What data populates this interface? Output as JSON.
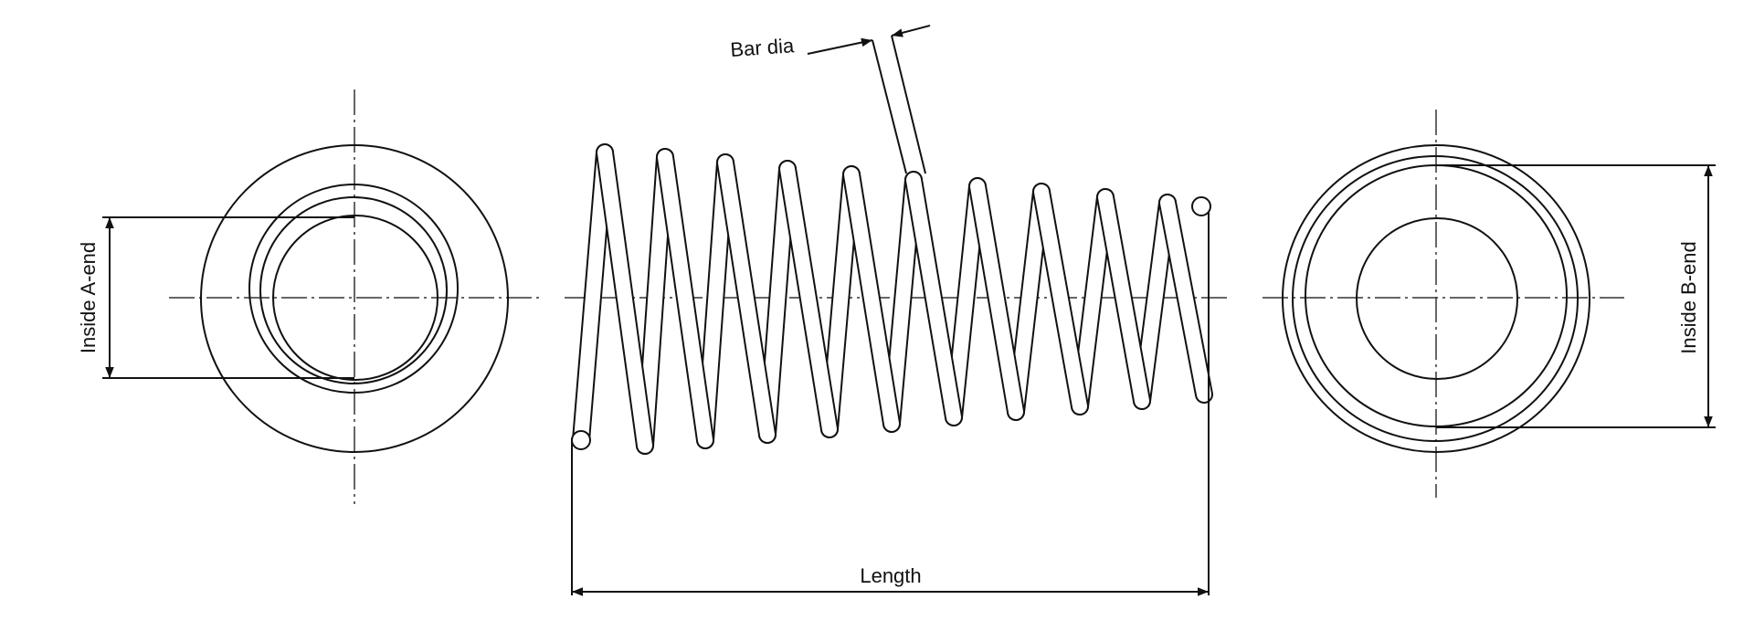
{
  "labels": {
    "bar_dia": "Bar dia",
    "inside_a_end": "Inside A-end",
    "inside_b_end": "Inside B-end",
    "length": "Length"
  },
  "colors": {
    "line": "#111111",
    "background": "#ffffff"
  }
}
